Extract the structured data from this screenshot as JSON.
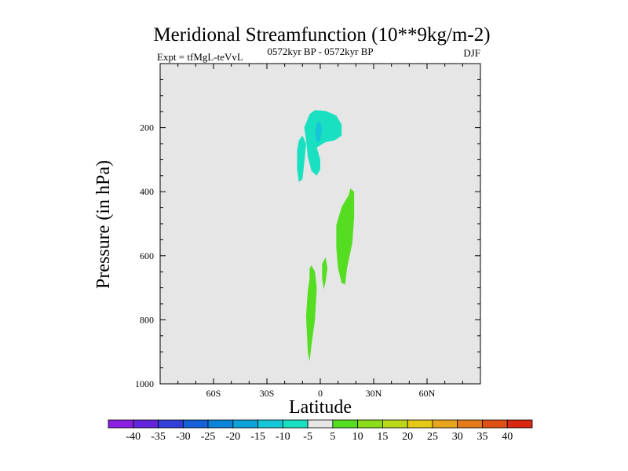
{
  "chart_data": {
    "type": "contour",
    "title": "Meridional Streamfunction (10**9kg/m-2)",
    "left_label": "Expt = tfMgL-teVvL",
    "center_label": "0572kyr BP - 0572kyr BP",
    "right_label": "DJF",
    "xlabel": "Latitude",
    "ylabel": "Pressure (in hPa)",
    "xlim": [
      -90,
      90
    ],
    "ylim": [
      1000,
      0
    ],
    "x_ticks": [
      {
        "value": -60,
        "label": "60S"
      },
      {
        "value": -30,
        "label": "30S"
      },
      {
        "value": 0,
        "label": "0"
      },
      {
        "value": 30,
        "label": "30N"
      },
      {
        "value": 60,
        "label": "60N"
      }
    ],
    "y_ticks": [
      {
        "value": 200,
        "label": "200"
      },
      {
        "value": 400,
        "label": "400"
      },
      {
        "value": 600,
        "label": "600"
      },
      {
        "value": 800,
        "label": "800"
      },
      {
        "value": 1000,
        "label": "1000"
      }
    ],
    "background_fill": "#e6e6e6",
    "contour_regions": [
      {
        "name": "neg-5-10-upper",
        "level": "-5 to -10",
        "color": "#19e0c0",
        "points": [
          [
            -6,
            158
          ],
          [
            -3,
            145
          ],
          [
            3,
            148
          ],
          [
            9,
            162
          ],
          [
            12,
            190
          ],
          [
            12,
            225
          ],
          [
            8,
            240
          ],
          [
            3,
            245
          ],
          [
            -2,
            262
          ],
          [
            0,
            300
          ],
          [
            0,
            330
          ],
          [
            -2,
            350
          ],
          [
            -5,
            335
          ],
          [
            -7,
            290
          ],
          [
            -8,
            240
          ],
          [
            -9,
            200
          ]
        ]
      },
      {
        "name": "neg-5-10-left-sliver",
        "level": "-5 to -10",
        "color": "#19e0c0",
        "points": [
          [
            -12,
            240
          ],
          [
            -10,
            225
          ],
          [
            -8,
            250
          ],
          [
            -9,
            310
          ],
          [
            -10,
            360
          ],
          [
            -12,
            370
          ],
          [
            -13,
            330
          ],
          [
            -13,
            270
          ]
        ]
      },
      {
        "name": "neg-10-15-core",
        "level": "-10 to -15",
        "color": "#14c6d8",
        "points": [
          [
            -2,
            185
          ],
          [
            0,
            180
          ],
          [
            1,
            205
          ],
          [
            0,
            240
          ],
          [
            -2,
            245
          ],
          [
            -3,
            215
          ]
        ]
      },
      {
        "name": "pos-5-10-mid",
        "level": "5 to 10",
        "color": "#55dd22",
        "points": [
          [
            12,
            448
          ],
          [
            16,
            410
          ],
          [
            17,
            390
          ],
          [
            19,
            400
          ],
          [
            19,
            480
          ],
          [
            18,
            560
          ],
          [
            15,
            640
          ],
          [
            14,
            690
          ],
          [
            12,
            685
          ],
          [
            10,
            640
          ],
          [
            9,
            575
          ],
          [
            9,
            505
          ]
        ]
      },
      {
        "name": "pos-5-10-small",
        "level": "5 to 10",
        "color": "#55dd22",
        "points": [
          [
            1,
            625
          ],
          [
            3,
            605
          ],
          [
            4,
            640
          ],
          [
            3,
            680
          ],
          [
            2,
            705
          ],
          [
            1,
            670
          ]
        ]
      },
      {
        "name": "pos-5-10-lower",
        "level": "5 to 10",
        "color": "#55dd22",
        "points": [
          [
            -7,
            710
          ],
          [
            -6,
            670
          ],
          [
            -6,
            640
          ],
          [
            -5,
            630
          ],
          [
            -3,
            650
          ],
          [
            -2,
            700
          ],
          [
            -3,
            800
          ],
          [
            -5,
            880
          ],
          [
            -6,
            930
          ],
          [
            -7,
            900
          ],
          [
            -8,
            790
          ]
        ]
      }
    ],
    "colorbar": {
      "labels": [
        "-40",
        "-35",
        "-30",
        "-25",
        "-20",
        "-15",
        "-10",
        "-5",
        "5",
        "10",
        "15",
        "20",
        "25",
        "30",
        "35",
        "40"
      ],
      "colors": [
        "#8c20e0",
        "#6424dc",
        "#3040d8",
        "#1460d8",
        "#0c84d8",
        "#0ca4d8",
        "#14c6d8",
        "#19e0c0",
        "#e6e6e6",
        "#55dd22",
        "#8cdc1c",
        "#bcd81a",
        "#e6c816",
        "#e8a41a",
        "#e47a18",
        "#e05014",
        "#d82810"
      ]
    }
  }
}
